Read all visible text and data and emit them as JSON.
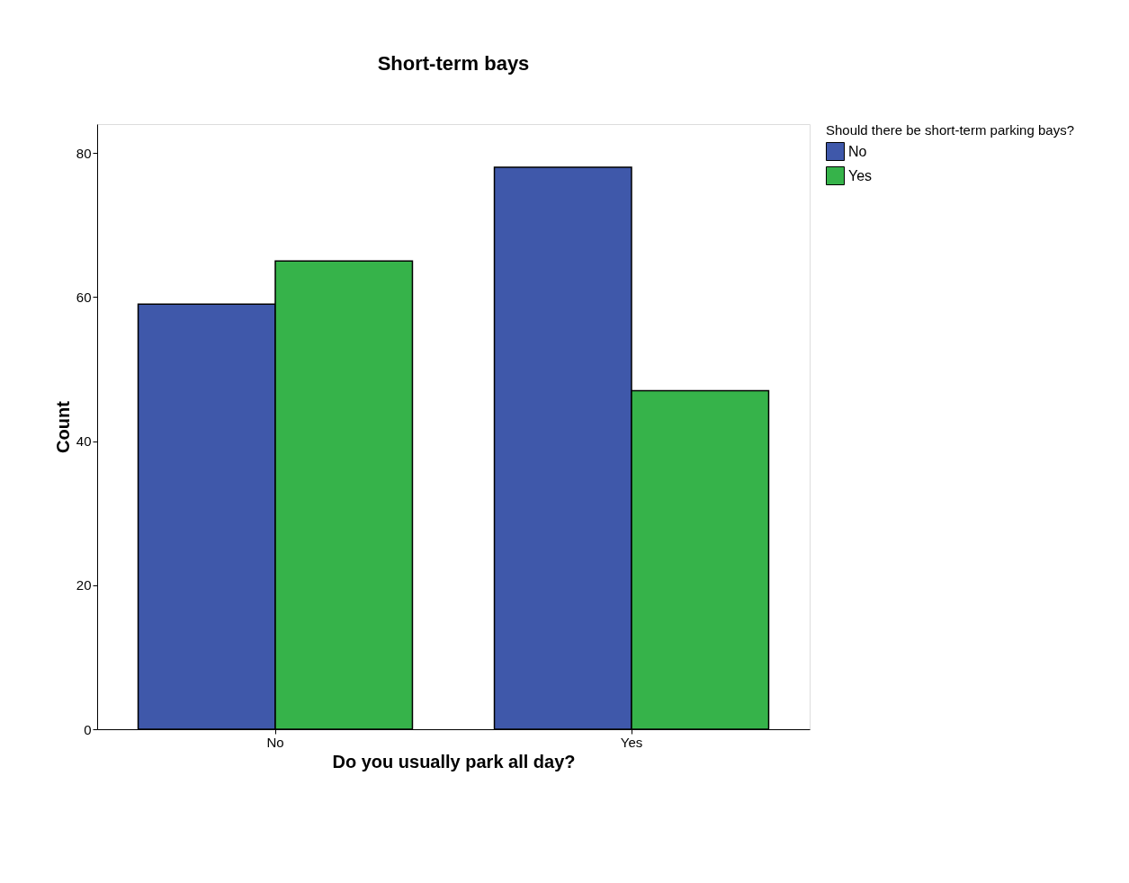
{
  "chart_data": {
    "type": "bar",
    "title": "Short-term bays",
    "xlabel": "Do you usually park all day?",
    "ylabel": "Count",
    "legend_title": "Should there be short-term parking bays?",
    "categories": [
      "No",
      "Yes"
    ],
    "series": [
      {
        "name": "No",
        "color": "#3f58aa",
        "values": [
          59,
          78
        ]
      },
      {
        "name": "Yes",
        "color": "#36b34a",
        "values": [
          65,
          47
        ]
      }
    ],
    "ylim": [
      0,
      84
    ],
    "yticks": [
      0,
      20,
      40,
      60,
      80
    ],
    "grid": false,
    "legend": "top right"
  }
}
